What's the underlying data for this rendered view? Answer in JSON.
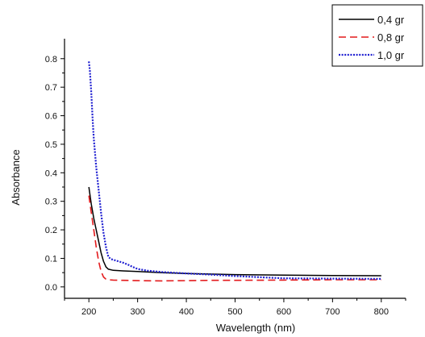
{
  "chart_data": {
    "type": "line",
    "title": "",
    "xlabel": "Wavelength (nm)",
    "ylabel": "Absorbance",
    "xlim": [
      150,
      850
    ],
    "ylim": [
      -0.04,
      0.87
    ],
    "xticks": [
      200,
      300,
      400,
      500,
      600,
      700,
      800
    ],
    "yticks": [
      0.0,
      0.1,
      0.2,
      0.3,
      0.4,
      0.5,
      0.6,
      0.7,
      0.8
    ],
    "xtick_labels": [
      "200",
      "300",
      "400",
      "500",
      "600",
      "700",
      "800"
    ],
    "ytick_labels": [
      "0.0",
      "0.1",
      "0.2",
      "0.3",
      "0.4",
      "0.5",
      "0.6",
      "0.7",
      "0.8"
    ],
    "grid": false,
    "legend_position": "top-right",
    "series": [
      {
        "name": "0,4 gr",
        "color": "#000000",
        "dash": "solid",
        "x": [
          200,
          205,
          210,
          215,
          220,
          225,
          230,
          235,
          240,
          250,
          270,
          300,
          350,
          400,
          500,
          600,
          700,
          800
        ],
        "y": [
          0.35,
          0.29,
          0.24,
          0.2,
          0.16,
          0.12,
          0.09,
          0.07,
          0.062,
          0.058,
          0.056,
          0.054,
          0.05,
          0.047,
          0.043,
          0.041,
          0.04,
          0.039
        ]
      },
      {
        "name": "0,8 gr",
        "color": "#e31a1c",
        "dash": "dashed",
        "x": [
          200,
          205,
          210,
          215,
          220,
          225,
          230,
          235,
          240,
          250,
          270,
          300,
          350,
          400,
          450,
          500,
          600,
          700,
          800
        ],
        "y": [
          0.32,
          0.26,
          0.2,
          0.14,
          0.09,
          0.055,
          0.035,
          0.027,
          0.025,
          0.024,
          0.023,
          0.022,
          0.021,
          0.022,
          0.023,
          0.023,
          0.024,
          0.025,
          0.025
        ]
      },
      {
        "name": "1,0 gr",
        "color": "#1f1fd1",
        "dash": "dotted",
        "x": [
          200,
          202,
          205,
          208,
          210,
          215,
          220,
          225,
          230,
          235,
          240,
          245,
          250,
          260,
          270,
          280,
          290,
          300,
          320,
          350,
          400,
          450,
          500,
          550,
          600,
          700,
          800
        ],
        "y": [
          0.79,
          0.76,
          0.68,
          0.58,
          0.52,
          0.42,
          0.34,
          0.26,
          0.19,
          0.14,
          0.105,
          0.098,
          0.095,
          0.09,
          0.085,
          0.078,
          0.07,
          0.063,
          0.057,
          0.052,
          0.047,
          0.043,
          0.038,
          0.034,
          0.03,
          0.029,
          0.028
        ]
      }
    ]
  }
}
